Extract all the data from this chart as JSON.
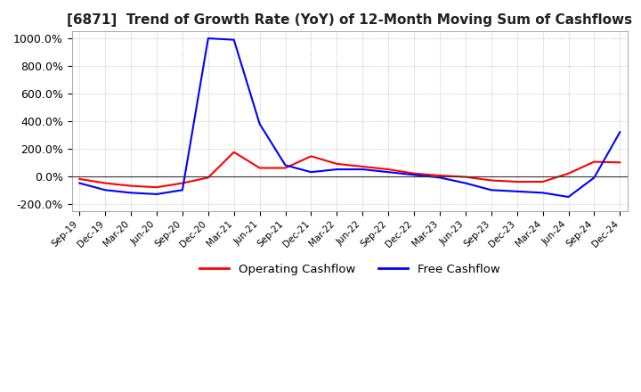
{
  "title": "[6871]  Trend of Growth Rate (YoY) of 12-Month Moving Sum of Cashflows",
  "title_fontsize": 11,
  "background_color": "#ffffff",
  "grid_color": "#aaaaaa",
  "ylim": [
    -250,
    1050
  ],
  "yticks": [
    -200,
    0,
    200,
    400,
    600,
    800,
    1000
  ],
  "ytick_labels": [
    "-200.0%",
    "0.0%",
    "200.0%",
    "400.0%",
    "600.0%",
    "800.0%",
    "1000.0%"
  ],
  "legend_entries": [
    "Operating Cashflow",
    "Free Cashflow"
  ],
  "legend_colors": [
    "#ff0000",
    "#0000ff"
  ],
  "x_labels": [
    "Sep-19",
    "Dec-19",
    "Mar-20",
    "Jun-20",
    "Sep-20",
    "Dec-20",
    "Mar-21",
    "Jun-21",
    "Sep-21",
    "Dec-21",
    "Mar-22",
    "Jun-22",
    "Sep-22",
    "Dec-22",
    "Mar-23",
    "Jun-23",
    "Sep-23",
    "Dec-23",
    "Mar-24",
    "Jun-24",
    "Sep-24",
    "Dec-24"
  ],
  "operating_cashflow": [
    -20,
    -50,
    -70,
    -80,
    -50,
    -10,
    175,
    60,
    60,
    145,
    90,
    70,
    50,
    20,
    5,
    -5,
    -30,
    -40,
    -40,
    20,
    105,
    100
  ],
  "free_cashflow": [
    -50,
    -100,
    -120,
    -130,
    -100,
    1000,
    990,
    380,
    80,
    30,
    50,
    50,
    30,
    10,
    -10,
    -50,
    -100,
    -110,
    -120,
    -150,
    -10,
    320
  ]
}
